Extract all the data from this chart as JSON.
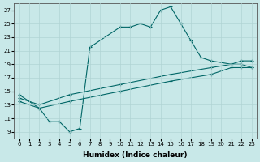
{
  "xlabel": "Humidex (Indice chaleur)",
  "ylabel": "",
  "xlim": [
    -0.5,
    23.5
  ],
  "ylim": [
    8,
    28
  ],
  "xticks": [
    0,
    1,
    2,
    3,
    4,
    5,
    6,
    7,
    8,
    9,
    10,
    11,
    12,
    13,
    14,
    15,
    16,
    17,
    18,
    19,
    20,
    21,
    22,
    23
  ],
  "yticks": [
    9,
    11,
    13,
    15,
    17,
    19,
    21,
    23,
    25,
    27
  ],
  "bg_color": "#c8e8e8",
  "grid_color": "#b0d4d4",
  "line_color": "#006666",
  "line1_x": [
    0,
    2,
    3,
    4,
    5,
    6,
    7,
    10,
    11,
    12,
    13,
    14,
    15,
    16,
    17,
    18,
    19,
    21,
    22,
    23
  ],
  "line1_y": [
    14.5,
    12.5,
    10.5,
    10.5,
    9.0,
    9.5,
    21.5,
    24.5,
    24.5,
    25.0,
    24.5,
    27.0,
    27.5,
    25.0,
    22.5,
    20.0,
    19.5,
    19.0,
    19.0,
    18.5
  ],
  "line2_x": [
    0,
    2,
    5,
    10,
    15,
    19,
    21,
    22,
    23
  ],
  "line2_y": [
    14.0,
    13.0,
    14.5,
    16.0,
    17.5,
    18.5,
    19.0,
    19.5,
    19.5
  ],
  "line3_x": [
    0,
    2,
    5,
    10,
    15,
    19,
    21,
    22,
    23
  ],
  "line3_y": [
    13.5,
    12.5,
    13.5,
    15.0,
    16.5,
    17.5,
    18.5,
    18.5,
    18.5
  ],
  "marker_style": "+"
}
